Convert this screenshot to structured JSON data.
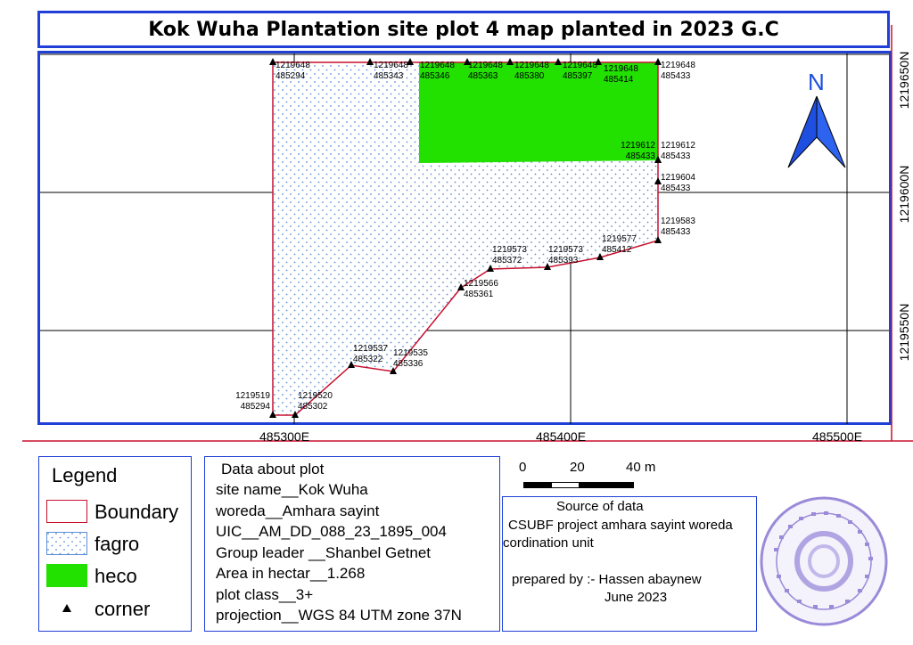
{
  "title": "Kok Wuha Plantation site plot 4 map planted in 2023 G.C",
  "map": {
    "x_ticks": [
      "485300E",
      "485400E",
      "485500E"
    ],
    "y_ticks": [
      "1219650N",
      "1219600N",
      "1219550N"
    ],
    "north_label": "N",
    "corners": [
      {
        "n": "1219648",
        "e": "485294"
      },
      {
        "n": "1219648",
        "e": "485343"
      },
      {
        "n": "1219648",
        "e": "485346"
      },
      {
        "n": "1219648",
        "e": "485363"
      },
      {
        "n": "1219648",
        "e": "485380"
      },
      {
        "n": "1219648",
        "e": "485397"
      },
      {
        "n": "1219648",
        "e": "485414"
      },
      {
        "n": "1219648",
        "e": "485433"
      },
      {
        "n": "1219612",
        "e": "485433"
      },
      {
        "n": "1219612",
        "e": "485433"
      },
      {
        "n": "1219604",
        "e": "485433"
      },
      {
        "n": "1219583",
        "e": "485433"
      },
      {
        "n": "1219577",
        "e": "485412"
      },
      {
        "n": "1219573",
        "e": "485393"
      },
      {
        "n": "1219573",
        "e": "485372"
      },
      {
        "n": "1219566",
        "e": "485361"
      },
      {
        "n": "1219535",
        "e": "485336"
      },
      {
        "n": "1219537",
        "e": "485322"
      },
      {
        "n": "1219520",
        "e": "485302"
      },
      {
        "n": "1219519",
        "e": "485294"
      }
    ]
  },
  "legend": {
    "title": "Legend",
    "items": [
      {
        "label": "Boundary",
        "color": "#c8102e"
      },
      {
        "label": "fagro",
        "color": "#5b8fd6"
      },
      {
        "label": "heco",
        "color": "#22e000"
      },
      {
        "label": "corner",
        "color": "#000000"
      }
    ]
  },
  "plot_data": {
    "heading": "Data about plot",
    "lines": [
      "site name__Kok Wuha",
      "woreda__Amhara sayint",
      "UIC__AM_DD_088_23_1895_004",
      "Group leader __Shanbel Getnet",
      "Area in hectar__1.268",
      "plot class__3+",
      "projection__WGS 84 UTM zone 37N"
    ]
  },
  "scale_bar": {
    "labels": [
      "0",
      "20",
      "40 m"
    ]
  },
  "source": {
    "lines": [
      "Source of data",
      "CSUBF project amhara sayint woreda",
      "cordination unit"
    ],
    "prepared_by": "prepared by :- Hassen abaynew",
    "date": "June 2023"
  },
  "colors": {
    "frame": "#1f3fd6",
    "boundary": "#c8102e",
    "heco": "#22e000",
    "fagro_dot": "#5b8fd6",
    "arrow": "#1f4fe0",
    "stamp": "#9a8ad8"
  }
}
